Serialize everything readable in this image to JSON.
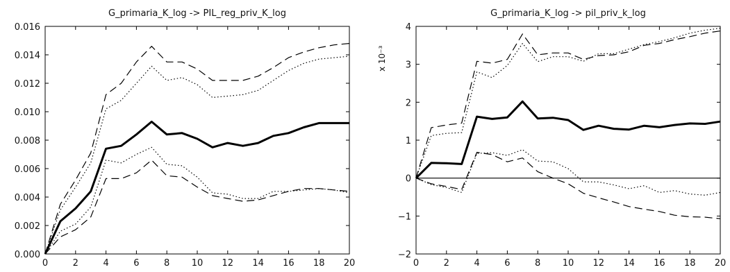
{
  "chart_data": [
    {
      "type": "line",
      "title": "G_primaria_K_log -> PIL_reg_priv_K_log",
      "xlabel": "",
      "ylabel": "",
      "xlim": [
        0,
        20
      ],
      "ylim": [
        0,
        0.016
      ],
      "x_ticks": [
        "0",
        "2",
        "4",
        "6",
        "8",
        "10",
        "12",
        "14",
        "16",
        "18",
        "20"
      ],
      "y_ticks": [
        "0.000",
        "0.002",
        "0.004",
        "0.006",
        "0.008",
        "0.010",
        "0.012",
        "0.014",
        "0.016"
      ],
      "y_multiplier": "",
      "zero_line": false,
      "x": [
        0,
        1,
        2,
        3,
        4,
        5,
        6,
        7,
        8,
        9,
        10,
        11,
        12,
        13,
        14,
        15,
        16,
        17,
        18,
        19,
        20
      ],
      "series": [
        {
          "style": "solid",
          "values": [
            0.0,
            0.0023,
            0.0032,
            0.0044,
            0.0074,
            0.0076,
            0.0084,
            0.0093,
            0.0084,
            0.0085,
            0.0081,
            0.0075,
            0.0078,
            0.0076,
            0.0078,
            0.0083,
            0.0085,
            0.0089,
            0.0092,
            0.0092,
            0.0092
          ]
        },
        {
          "style": "dashed",
          "values": [
            0.0,
            0.0035,
            0.0052,
            0.0071,
            0.0112,
            0.012,
            0.0135,
            0.0146,
            0.0135,
            0.0135,
            0.013,
            0.0122,
            0.0122,
            0.0122,
            0.0125,
            0.0131,
            0.0138,
            0.0142,
            0.0145,
            0.0147,
            0.0148
          ]
        },
        {
          "style": "dotted",
          "values": [
            0.0,
            0.0031,
            0.0047,
            0.0064,
            0.0102,
            0.0108,
            0.012,
            0.0132,
            0.0122,
            0.0124,
            0.0119,
            0.011,
            0.0111,
            0.0112,
            0.0115,
            0.0122,
            0.0129,
            0.0134,
            0.0137,
            0.0138,
            0.0139
          ]
        },
        {
          "style": "dotted",
          "values": [
            0.0,
            0.0016,
            0.0021,
            0.0033,
            0.0066,
            0.0064,
            0.007,
            0.0075,
            0.0063,
            0.0062,
            0.0054,
            0.0043,
            0.0042,
            0.0039,
            0.0039,
            0.0044,
            0.0044,
            0.0045,
            0.0046,
            0.0045,
            0.0043
          ]
        },
        {
          "style": "dashed",
          "values": [
            0.0,
            0.0012,
            0.0017,
            0.0026,
            0.0053,
            0.0053,
            0.0057,
            0.0066,
            0.0055,
            0.0054,
            0.0047,
            0.0041,
            0.0039,
            0.0037,
            0.0038,
            0.0041,
            0.0044,
            0.0046,
            0.0046,
            0.0045,
            0.0044
          ]
        }
      ]
    },
    {
      "type": "line",
      "title": "G_primaria_K_log -> pil_priv_k_log",
      "xlabel": "",
      "ylabel": "",
      "xlim": [
        0,
        20
      ],
      "ylim": [
        -2,
        4
      ],
      "x_ticks": [
        "0",
        "2",
        "4",
        "6",
        "8",
        "10",
        "12",
        "14",
        "16",
        "18",
        "20"
      ],
      "y_ticks": [
        "−2",
        "−1",
        "0",
        "1",
        "2",
        "3",
        "4"
      ],
      "y_multiplier": "x 10⁻³",
      "zero_line": true,
      "x": [
        0,
        1,
        2,
        3,
        4,
        5,
        6,
        7,
        8,
        9,
        10,
        11,
        12,
        13,
        14,
        15,
        16,
        17,
        18,
        19,
        20
      ],
      "series": [
        {
          "style": "solid",
          "values": [
            0.0,
            0.4,
            0.39,
            0.37,
            1.62,
            1.56,
            1.6,
            2.02,
            1.57,
            1.59,
            1.53,
            1.27,
            1.38,
            1.3,
            1.28,
            1.38,
            1.34,
            1.4,
            1.44,
            1.43,
            1.49
          ]
        },
        {
          "style": "dashed",
          "values": [
            0.0,
            1.33,
            1.4,
            1.45,
            3.08,
            3.03,
            3.13,
            3.8,
            3.25,
            3.3,
            3.3,
            3.13,
            3.23,
            3.25,
            3.33,
            3.5,
            3.55,
            3.65,
            3.73,
            3.82,
            3.88
          ]
        },
        {
          "style": "dotted",
          "values": [
            0.0,
            1.12,
            1.18,
            1.2,
            2.8,
            2.65,
            2.97,
            3.55,
            3.07,
            3.2,
            3.2,
            3.08,
            3.28,
            3.28,
            3.4,
            3.52,
            3.6,
            3.7,
            3.82,
            3.9,
            3.95
          ]
        },
        {
          "style": "dotted",
          "values": [
            0.0,
            -0.17,
            -0.25,
            -0.38,
            0.65,
            0.67,
            0.6,
            0.75,
            0.45,
            0.43,
            0.25,
            -0.1,
            -0.1,
            -0.18,
            -0.28,
            -0.2,
            -0.38,
            -0.33,
            -0.42,
            -0.45,
            -0.38
          ]
        },
        {
          "style": "dashed",
          "values": [
            0.0,
            -0.15,
            -0.22,
            -0.3,
            0.68,
            0.62,
            0.43,
            0.53,
            0.17,
            0.0,
            -0.15,
            -0.4,
            -0.52,
            -0.63,
            -0.75,
            -0.82,
            -0.88,
            -0.98,
            -1.02,
            -1.03,
            -1.07
          ]
        }
      ]
    }
  ]
}
